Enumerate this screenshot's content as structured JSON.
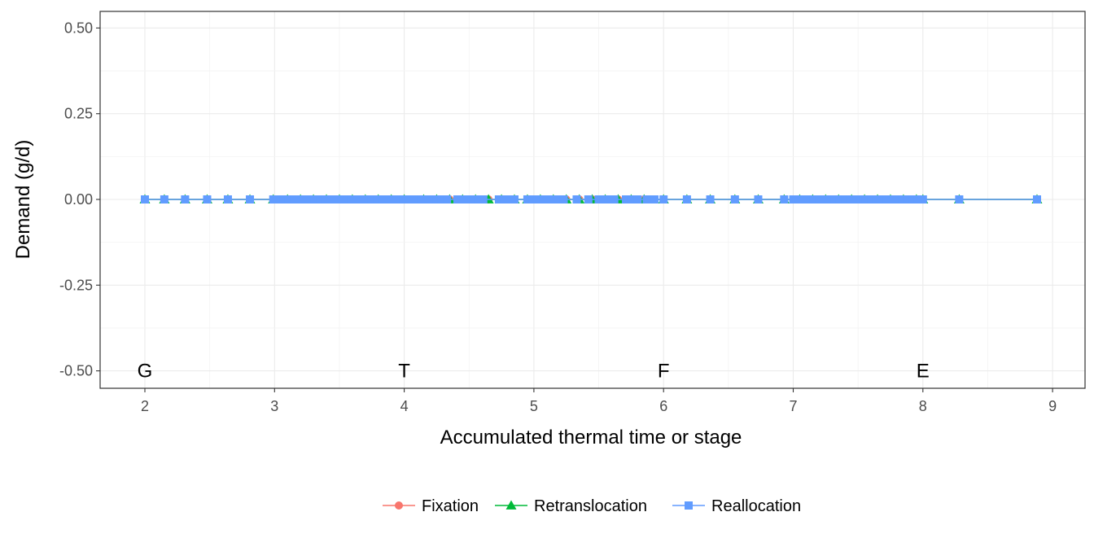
{
  "chart_data": {
    "type": "line",
    "xlabel": "Accumulated thermal time or stage",
    "ylabel": "Demand (g/d)",
    "xlim": [
      1.66,
      9.1
    ],
    "ylim": [
      -0.55,
      0.55
    ],
    "x_ticks": [
      2,
      3,
      4,
      5,
      6,
      7,
      8,
      9
    ],
    "y_ticks": [
      -0.5,
      -0.25,
      0,
      0.25,
      0.5
    ],
    "y_tick_labels": [
      "-0.50",
      "-0.25",
      "0.00",
      "0.25",
      "0.50"
    ],
    "grid": true,
    "legend_position": "bottom",
    "stage_labels": [
      {
        "x": 2,
        "y": -0.5,
        "text": "G"
      },
      {
        "x": 4,
        "y": -0.5,
        "text": "T"
      },
      {
        "x": 6,
        "y": -0.5,
        "text": "F"
      },
      {
        "x": 8,
        "y": -0.5,
        "text": "E"
      }
    ],
    "series": [
      {
        "name": "Fixation",
        "color": "#F8766D",
        "marker": "circle",
        "x": [
          2.0,
          2.15,
          2.31,
          2.48,
          2.64,
          2.81,
          2.99,
          3.1,
          3.2,
          3.3,
          3.4,
          3.5,
          3.6,
          3.7,
          3.8,
          3.9,
          4.0,
          4.15,
          4.25,
          4.35,
          4.45,
          4.55,
          4.65,
          4.75,
          4.85,
          4.95,
          5.05,
          5.15,
          5.25,
          5.35,
          5.45,
          5.55,
          5.65,
          5.75,
          5.85,
          6.0,
          6.18,
          6.36,
          6.55,
          6.73,
          6.93,
          7.05,
          7.15,
          7.25,
          7.35,
          7.45,
          7.55,
          7.65,
          7.75,
          7.85,
          7.95,
          8.0,
          8.28,
          8.88
        ],
        "y": [
          0,
          0,
          0,
          0,
          0,
          0,
          0,
          0,
          0,
          0,
          0,
          0,
          0,
          0,
          0,
          0,
          0,
          0,
          0,
          0,
          0,
          0,
          0,
          0,
          0,
          0,
          0,
          0,
          0,
          0,
          0,
          0,
          0,
          0,
          0,
          0,
          0,
          0,
          0,
          0,
          0,
          0,
          0,
          0,
          0,
          0,
          0,
          0,
          0,
          0,
          0,
          0,
          0,
          0
        ]
      },
      {
        "name": "Retranslocation",
        "color": "#00BA38",
        "marker": "triangle",
        "x": [
          2.0,
          2.15,
          2.31,
          2.48,
          2.64,
          2.81,
          2.99,
          3.1,
          3.2,
          3.3,
          3.4,
          3.5,
          3.6,
          3.7,
          3.8,
          3.9,
          4.0,
          4.15,
          4.25,
          4.35,
          4.45,
          4.55,
          4.65,
          4.75,
          4.85,
          4.95,
          5.05,
          5.15,
          5.25,
          5.35,
          5.45,
          5.55,
          5.65,
          5.75,
          5.85,
          6.0,
          6.18,
          6.36,
          6.55,
          6.73,
          6.93,
          7.05,
          7.15,
          7.25,
          7.35,
          7.45,
          7.55,
          7.65,
          7.75,
          7.85,
          7.95,
          8.0,
          8.28,
          8.88
        ],
        "y": [
          0,
          0,
          0,
          0,
          0,
          0,
          0,
          0,
          0,
          0,
          0,
          0,
          0,
          0,
          0,
          0,
          0,
          0,
          0,
          0,
          0,
          0,
          0,
          0,
          0,
          0,
          0,
          0,
          0,
          0,
          0,
          0,
          0,
          0,
          0,
          0,
          0,
          0,
          0,
          0,
          0,
          0,
          0,
          0,
          0,
          0,
          0,
          0,
          0,
          0,
          0,
          0,
          0,
          0
        ]
      },
      {
        "name": "Reallocation",
        "color": "#619CFF",
        "marker": "square",
        "x": [
          2.0,
          2.15,
          2.31,
          2.48,
          2.64,
          2.81,
          2.99,
          3.03,
          3.07,
          3.11,
          3.15,
          3.19,
          3.23,
          3.27,
          3.31,
          3.35,
          3.39,
          3.43,
          3.47,
          3.51,
          3.55,
          3.59,
          3.63,
          3.67,
          3.71,
          3.75,
          3.79,
          3.83,
          3.87,
          3.91,
          3.95,
          3.99,
          4.03,
          4.07,
          4.13,
          4.17,
          4.21,
          4.25,
          4.29,
          4.33,
          4.41,
          4.45,
          4.49,
          4.53,
          4.57,
          4.61,
          4.73,
          4.77,
          4.81,
          4.85,
          4.95,
          4.99,
          5.03,
          5.07,
          5.11,
          5.17,
          5.23,
          5.33,
          5.42,
          5.5,
          5.54,
          5.58,
          5.62,
          5.71,
          5.75,
          5.8,
          5.87,
          5.93,
          6.0,
          6.18,
          6.36,
          6.55,
          6.73,
          6.93,
          7.0,
          7.04,
          7.08,
          7.12,
          7.16,
          7.2,
          7.24,
          7.28,
          7.32,
          7.36,
          7.4,
          7.44,
          7.48,
          7.52,
          7.56,
          7.6,
          7.64,
          7.68,
          7.72,
          7.76,
          7.8,
          7.84,
          7.88,
          7.92,
          7.96,
          8.0,
          8.28,
          8.88
        ],
        "y": [
          0,
          0,
          0,
          0,
          0,
          0,
          0,
          0,
          0,
          0,
          0,
          0,
          0,
          0,
          0,
          0,
          0,
          0,
          0,
          0,
          0,
          0,
          0,
          0,
          0,
          0,
          0,
          0,
          0,
          0,
          0,
          0,
          0,
          0,
          0,
          0,
          0,
          0,
          0,
          0,
          0,
          0,
          0,
          0,
          0,
          0,
          0,
          0,
          0,
          0,
          0,
          0,
          0,
          0,
          0,
          0,
          0,
          0,
          0,
          0,
          0,
          0,
          0,
          0,
          0,
          0,
          0,
          0,
          0,
          0,
          0,
          0,
          0,
          0,
          0,
          0,
          0,
          0,
          0,
          0,
          0,
          0,
          0,
          0,
          0,
          0,
          0,
          0,
          0,
          0,
          0,
          0,
          0,
          0,
          0,
          0,
          0,
          0,
          0,
          0,
          0,
          0
        ]
      }
    ]
  }
}
